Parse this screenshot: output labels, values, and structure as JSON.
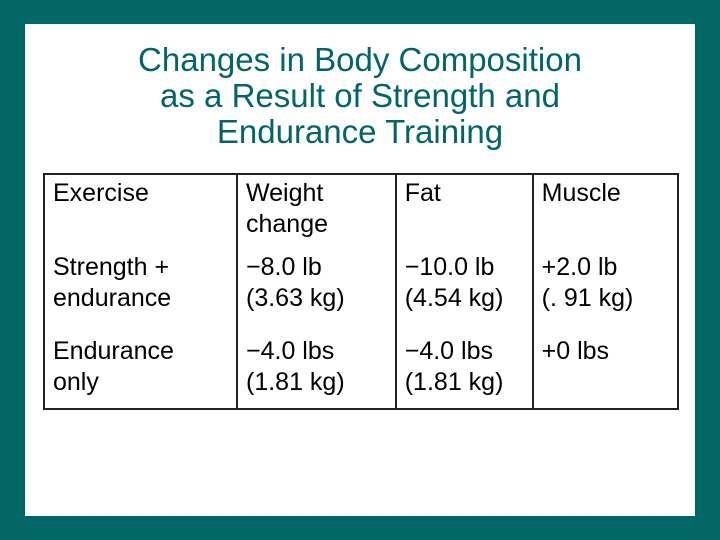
{
  "title": {
    "line1": "Changes in Body Composition",
    "line2": "as a Result of Strength and",
    "line3": "Endurance Training"
  },
  "table": {
    "headers": {
      "exercise": "Exercise",
      "weight_line1": "Weight",
      "weight_line2": "change",
      "fat": "Fat",
      "muscle": "Muscle"
    },
    "rows": [
      {
        "exercise_line1": "Strength +",
        "exercise_line2": "endurance",
        "weight_line1": "−8.0 lb",
        "weight_line2": "(3.63 kg)",
        "fat_line1": "−10.0 lb",
        "fat_line2": "(4.54 kg)",
        "muscle_line1": "+2.0 lb",
        "muscle_line2": "(. 91 kg)"
      },
      {
        "exercise_line1": "Endurance",
        "exercise_line2": "only",
        "weight_line1": "−4.0 lbs",
        "weight_line2": "(1.81 kg)",
        "fat_line1": "−4.0 lbs",
        "fat_line2": "(1.81 kg)",
        "muscle_line1": "+0 lbs",
        "muscle_line2": ""
      }
    ]
  },
  "colors": {
    "frame": "#006666",
    "title": "#006666",
    "background": "#ffffff",
    "text": "#000000"
  }
}
